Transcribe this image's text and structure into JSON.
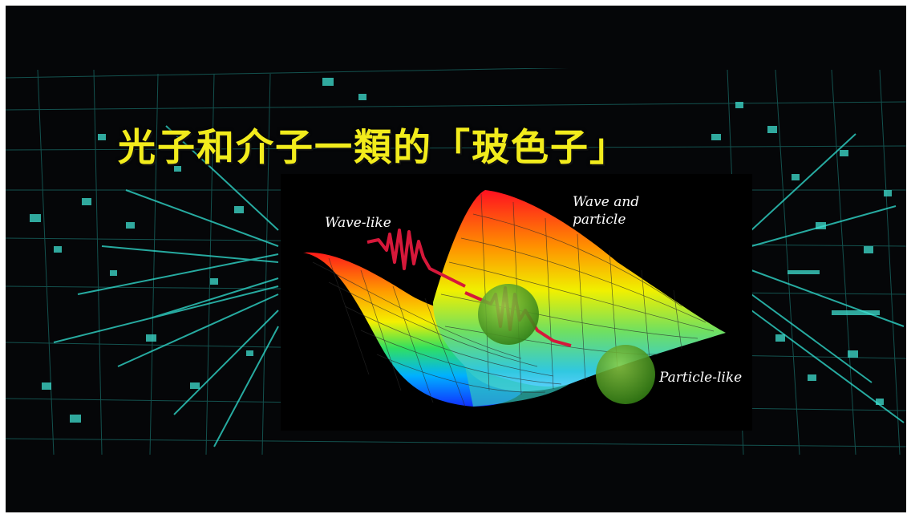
{
  "title": "光子和介子一類的「玻色子」",
  "diagram": {
    "wave_like_label": "Wave-like",
    "wave_and_particle_label": "Wave and\nparticle",
    "particle_like_label": "Particle-like"
  },
  "colors": {
    "title": "#f2ec1c",
    "background": "#050608",
    "grid_lines": "#2fd3c6",
    "wave": "#d6183a",
    "sphere": "#4a9a1a"
  }
}
